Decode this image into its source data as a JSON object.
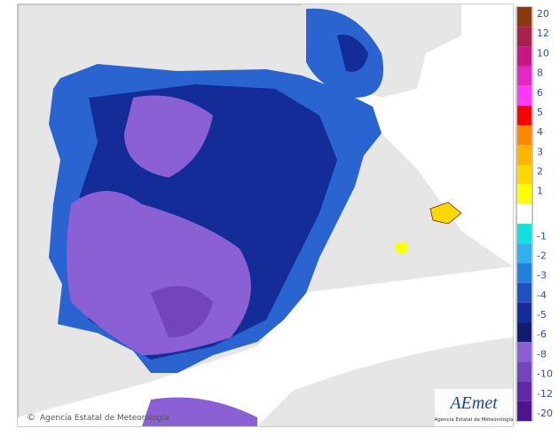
{
  "legend": {
    "items": [
      {
        "label": "20",
        "color": "#8b3a10"
      },
      {
        "label": "12",
        "color": "#a8204c"
      },
      {
        "label": "10",
        "color": "#c81888"
      },
      {
        "label": "8",
        "color": "#e428c8"
      },
      {
        "label": "6",
        "color": "#ff38ff"
      },
      {
        "label": "5",
        "color": "#ff0000"
      },
      {
        "label": "4",
        "color": "#ff8800"
      },
      {
        "label": "3",
        "color": "#ffb400"
      },
      {
        "label": "2",
        "color": "#ffd800"
      },
      {
        "label": "1",
        "color": "#ffff00"
      },
      {
        "label": "-1",
        "color": "#10e0e0"
      },
      {
        "label": "-2",
        "color": "#30b0f0"
      },
      {
        "label": "-3",
        "color": "#2080e0"
      },
      {
        "label": "-4",
        "color": "#2050c0"
      },
      {
        "label": "-5",
        "color": "#142c98"
      },
      {
        "label": "-6",
        "color": "#101c70"
      },
      {
        "label": "-8",
        "color": "#8a60d4"
      },
      {
        "label": "-10",
        "color": "#7444bc"
      },
      {
        "label": "-12",
        "color": "#6028a4"
      },
      {
        "label": "-20",
        "color": "#4e1490"
      }
    ]
  },
  "credit": "Agencia Estatal de Meteorología",
  "logo": {
    "name": "AEmet",
    "subtitle": "Agencia Estatal de Meteorología"
  }
}
